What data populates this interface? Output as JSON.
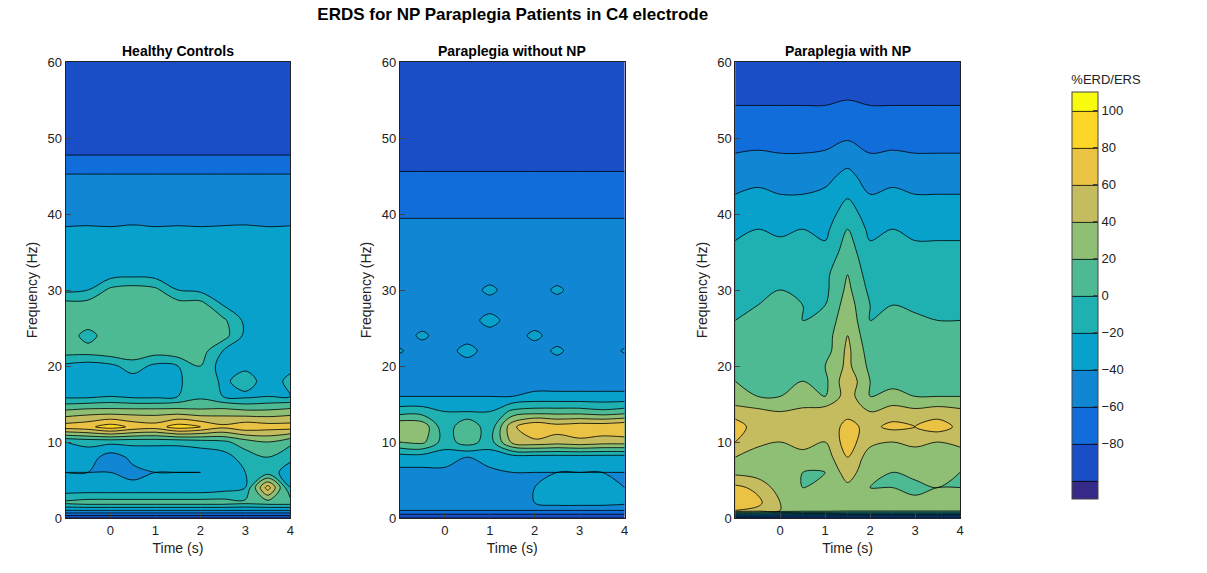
{
  "chart_data": {
    "type": "contour",
    "title": "ERDS for NP Paraplegia Patients in C4 electrode",
    "x_label": "Time (s)",
    "y_label": "Frequency (Hz)",
    "xlim": [
      -1,
      4
    ],
    "xticks": [
      0,
      1,
      2,
      3,
      4
    ],
    "ylim": [
      0,
      60
    ],
    "yticks": [
      0,
      10,
      20,
      30,
      40,
      50,
      60
    ],
    "x": [
      -1,
      -0.5,
      0,
      0.5,
      1,
      1.5,
      2,
      2.5,
      3,
      3.5,
      4
    ],
    "y": [
      0,
      1,
      2,
      4,
      6,
      8,
      10,
      12,
      14,
      16,
      18,
      20,
      22,
      24,
      26,
      28,
      30,
      32,
      35,
      38,
      40,
      42,
      45,
      48,
      50,
      55,
      60
    ],
    "colorbar": {
      "title": "%ERD/ERS",
      "range": [
        -100,
        100
      ],
      "ticks": [
        -80,
        -60,
        -40,
        -20,
        0,
        20,
        40,
        60,
        80,
        100
      ]
    },
    "panels": [
      {
        "title": "Healthy Controls",
        "z": [
          [
            -100,
            -100,
            -100,
            -100,
            -100,
            -100,
            -100,
            -100,
            -100,
            -100,
            -100
          ],
          [
            -40,
            -40,
            -40,
            -40,
            -40,
            -40,
            -40,
            -40,
            -40,
            -40,
            -40
          ],
          [
            5,
            10,
            10,
            10,
            10,
            10,
            10,
            10,
            5,
            10,
            10
          ],
          [
            -35,
            -35,
            -35,
            -35,
            -35,
            -35,
            -35,
            -30,
            -20,
            70,
            -20
          ],
          [
            -40,
            -40,
            -40,
            -45,
            -40,
            -40,
            -40,
            -35,
            -20,
            -10,
            -30
          ],
          [
            -35,
            -30,
            -50,
            -35,
            -35,
            -35,
            -35,
            -30,
            -10,
            0,
            -15
          ],
          [
            -20,
            -15,
            -15,
            -15,
            -15,
            -15,
            -10,
            -5,
            10,
            20,
            5
          ],
          [
            70,
            75,
            90,
            75,
            70,
            90,
            80,
            65,
            75,
            70,
            70
          ],
          [
            25,
            30,
            30,
            30,
            30,
            30,
            25,
            30,
            25,
            25,
            30
          ],
          [
            -25,
            -25,
            -20,
            -25,
            -25,
            -20,
            -5,
            -20,
            -25,
            -20,
            -20
          ],
          [
            -30,
            -30,
            -25,
            -30,
            -30,
            -25,
            0,
            -25,
            -10,
            -30,
            -15
          ],
          [
            -25,
            -30,
            -25,
            -10,
            -25,
            -20,
            0,
            -30,
            -25,
            -30,
            -25
          ],
          [
            10,
            10,
            15,
            15,
            10,
            15,
            10,
            -20,
            -30,
            -30,
            -30
          ],
          [
            15,
            -10,
            15,
            15,
            15,
            15,
            10,
            10,
            -25,
            -30,
            -30
          ],
          [
            15,
            15,
            15,
            20,
            15,
            15,
            15,
            5,
            -25,
            -30,
            -30
          ],
          [
            10,
            10,
            15,
            15,
            10,
            10,
            10,
            -20,
            -30,
            -30,
            -30
          ],
          [
            -25,
            -20,
            5,
            10,
            5,
            -20,
            -25,
            -30,
            -35,
            -30,
            -35
          ],
          [
            -30,
            -30,
            -28,
            -25,
            -28,
            -30,
            -30,
            -30,
            -30,
            -30,
            -30
          ],
          [
            -32,
            -33,
            -32,
            -32,
            -33,
            -32,
            -33,
            -32,
            -32,
            -33,
            -32
          ],
          [
            -38,
            -37,
            -38,
            -36,
            -38,
            -37,
            -38,
            -37,
            -36,
            -38,
            -37
          ],
          [
            -50,
            -50,
            -50,
            -50,
            -50,
            -50,
            -50,
            -50,
            -50,
            -50,
            -50
          ],
          [
            -52,
            -52,
            -52,
            -52,
            -52,
            -52,
            -52,
            -52,
            -52,
            -52,
            -52
          ],
          [
            -58,
            -58,
            -58,
            -58,
            -58,
            -58,
            -58,
            -58,
            -58,
            -58,
            -58
          ],
          [
            -82,
            -82,
            -82,
            -82,
            -82,
            -82,
            -82,
            -82,
            -82,
            -82,
            -82
          ],
          [
            -90,
            -90,
            -90,
            -90,
            -90,
            -90,
            -90,
            -90,
            -90,
            -90,
            -90
          ],
          [
            -95,
            -95,
            -95,
            -95,
            -95,
            -95,
            -95,
            -95,
            -95,
            -95,
            -95
          ],
          [
            -98,
            -98,
            -98,
            -98,
            -98,
            -98,
            -98,
            -98,
            -98,
            -98,
            -98
          ]
        ]
      },
      {
        "title": "Paraplegia without NP",
        "z": [
          [
            -100,
            -100,
            -100,
            -100,
            -100,
            -100,
            -100,
            -100,
            -100,
            -100,
            -100
          ],
          [
            -60,
            -60,
            -60,
            -60,
            -60,
            -60,
            -60,
            -60,
            -60,
            -60,
            -60
          ],
          [
            -40,
            -40,
            -40,
            -40,
            -40,
            -40,
            -40,
            -30,
            -30,
            -30,
            -35
          ],
          [
            -45,
            -45,
            -45,
            -45,
            -45,
            -45,
            -40,
            -35,
            -35,
            -35,
            -40
          ],
          [
            -45,
            -45,
            -45,
            -45,
            -45,
            -40,
            -40,
            -40,
            -40,
            -40,
            -40
          ],
          [
            -30,
            -30,
            -30,
            -40,
            -30,
            -30,
            -30,
            -30,
            -30,
            -30,
            -30
          ],
          [
            20,
            25,
            -10,
            10,
            -10,
            45,
            55,
            50,
            55,
            50,
            50
          ],
          [
            40,
            35,
            -15,
            20,
            -15,
            55,
            80,
            70,
            75,
            75,
            80
          ],
          [
            -10,
            -10,
            -20,
            -20,
            -20,
            5,
            10,
            10,
            10,
            5,
            10
          ],
          [
            -40,
            -40,
            -40,
            -40,
            -40,
            -40,
            -35,
            -35,
            -35,
            -35,
            -35
          ],
          [
            -50,
            -50,
            -50,
            -50,
            -50,
            -50,
            -50,
            -50,
            -50,
            -50,
            -50
          ],
          [
            -50,
            -50,
            -50,
            -50,
            -50,
            -50,
            -50,
            -50,
            -50,
            -50,
            -50
          ],
          [
            -38,
            -50,
            -50,
            -32,
            -50,
            -50,
            -50,
            -36,
            -50,
            -50,
            -38
          ],
          [
            -50,
            -36,
            -50,
            -50,
            -50,
            -50,
            -35,
            -50,
            -50,
            -50,
            -50
          ],
          [
            -50,
            -50,
            -50,
            -50,
            -32,
            -50,
            -50,
            -50,
            -50,
            -50,
            -50
          ],
          [
            -50,
            -50,
            -50,
            -50,
            -50,
            -50,
            -50,
            -50,
            -50,
            -50,
            -50
          ],
          [
            -50,
            -50,
            -50,
            -50,
            -35,
            -50,
            -50,
            -36,
            -50,
            -50,
            -50
          ],
          [
            -50,
            -50,
            -50,
            -50,
            -50,
            -50,
            -50,
            -50,
            -50,
            -50,
            -50
          ],
          [
            -50,
            -50,
            -50,
            -50,
            -50,
            -50,
            -50,
            -50,
            -50,
            -50,
            -50
          ],
          [
            -55,
            -55,
            -55,
            -55,
            -55,
            -55,
            -55,
            -55,
            -55,
            -55,
            -55
          ],
          [
            -62,
            -62,
            -62,
            -62,
            -62,
            -62,
            -62,
            -62,
            -62,
            -62,
            -62
          ],
          [
            -64,
            -64,
            -64,
            -64,
            -64,
            -64,
            -64,
            -64,
            -64,
            -64,
            -64
          ],
          [
            -78,
            -78,
            -78,
            -78,
            -78,
            -78,
            -78,
            -78,
            -78,
            -78,
            -78
          ],
          [
            -88,
            -88,
            -88,
            -88,
            -88,
            -88,
            -88,
            -88,
            -88,
            -88,
            -88
          ],
          [
            -95,
            -95,
            -95,
            -95,
            -95,
            -95,
            -95,
            -95,
            -95,
            -95,
            -95
          ],
          [
            -97,
            -97,
            -97,
            -97,
            -97,
            -97,
            -97,
            -97,
            -97,
            -97,
            -97
          ],
          [
            -99,
            -99,
            -99,
            -99,
            -99,
            -99,
            -99,
            -99,
            -99,
            -99,
            -99
          ]
        ]
      },
      {
        "title": "Paraplegia with NP",
        "z": [
          [
            -100,
            -100,
            -100,
            -100,
            -100,
            -100,
            -100,
            -100,
            -100,
            -100,
            -100
          ],
          [
            60,
            55,
            40,
            35,
            35,
            30,
            30,
            30,
            30,
            30,
            30
          ],
          [
            70,
            65,
            40,
            35,
            30,
            40,
            30,
            30,
            25,
            30,
            30
          ],
          [
            65,
            55,
            30,
            20,
            25,
            35,
            20,
            20,
            15,
            20,
            20
          ],
          [
            35,
            30,
            25,
            20,
            20,
            50,
            25,
            20,
            25,
            25,
            20
          ],
          [
            40,
            30,
            35,
            35,
            30,
            60,
            30,
            35,
            30,
            30,
            30
          ],
          [
            60,
            45,
            40,
            45,
            40,
            70,
            45,
            40,
            45,
            40,
            45
          ],
          [
            70,
            50,
            55,
            60,
            50,
            65,
            55,
            65,
            60,
            70,
            55
          ],
          [
            50,
            45,
            40,
            45,
            50,
            55,
            40,
            50,
            45,
            50,
            45
          ],
          [
            25,
            20,
            20,
            25,
            20,
            50,
            20,
            25,
            20,
            20,
            20
          ],
          [
            20,
            20,
            15,
            20,
            15,
            55,
            20,
            15,
            20,
            15,
            20
          ],
          [
            15,
            20,
            10,
            15,
            20,
            45,
            15,
            20,
            15,
            10,
            15
          ],
          [
            10,
            15,
            10,
            15,
            10,
            45,
            10,
            15,
            10,
            10,
            10
          ],
          [
            5,
            10,
            5,
            5,
            10,
            40,
            5,
            10,
            5,
            5,
            5
          ],
          [
            0,
            5,
            5,
            0,
            5,
            35,
            0,
            5,
            5,
            0,
            0
          ],
          [
            0,
            0,
            5,
            0,
            0,
            30,
            0,
            0,
            -5,
            0,
            0
          ],
          [
            -5,
            0,
            0,
            -5,
            -5,
            25,
            -5,
            0,
            -5,
            -5,
            -5
          ],
          [
            -10,
            -5,
            -10,
            -10,
            -5,
            20,
            -10,
            -5,
            -10,
            -10,
            -10
          ],
          [
            -15,
            -15,
            -10,
            -15,
            -15,
            10,
            -15,
            -15,
            -15,
            -15,
            -15
          ],
          [
            -25,
            -20,
            -25,
            -20,
            -25,
            0,
            -25,
            -20,
            -25,
            -25,
            -25
          ],
          [
            -30,
            -30,
            -30,
            -30,
            -30,
            -10,
            -30,
            -30,
            -30,
            -30,
            -30
          ],
          [
            -38,
            -35,
            -38,
            -38,
            -35,
            -20,
            -38,
            -35,
            -38,
            -38,
            -38
          ],
          [
            -48,
            -45,
            -48,
            -48,
            -45,
            -35,
            -48,
            -45,
            -48,
            -48,
            -48
          ],
          [
            -60,
            -58,
            -60,
            -60,
            -58,
            -50,
            -60,
            -58,
            -60,
            -60,
            -60
          ],
          [
            -68,
            -68,
            -68,
            -68,
            -68,
            -62,
            -68,
            -68,
            -68,
            -68,
            -68
          ],
          [
            -82,
            -82,
            -82,
            -82,
            -82,
            -80,
            -82,
            -82,
            -82,
            -82,
            -82
          ],
          [
            -92,
            -92,
            -92,
            -92,
            -92,
            -92,
            -92,
            -92,
            -92,
            -92,
            -92
          ]
        ]
      }
    ]
  }
}
